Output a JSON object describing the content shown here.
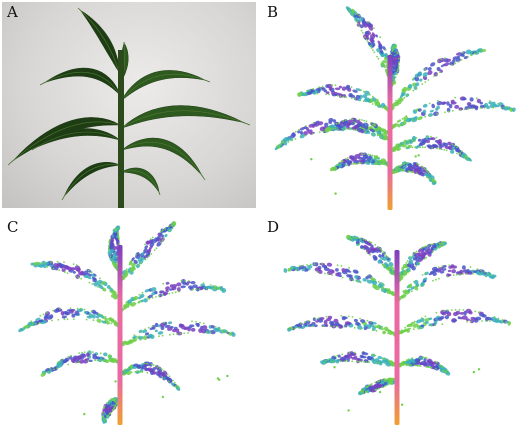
{
  "panels": [
    {
      "id": "a",
      "label": "A",
      "kind": "photo"
    },
    {
      "id": "b",
      "label": "B",
      "kind": "reconstruction",
      "seed": 11
    },
    {
      "id": "c",
      "label": "C",
      "kind": "reconstruction",
      "seed": 23
    },
    {
      "id": "d",
      "label": "D",
      "kind": "reconstruction",
      "seed": 37
    }
  ],
  "colors": {
    "photo_background": "#d9d8d6",
    "leaf_dark": "#1f3d14",
    "leaf_mid": "#2f5a1f",
    "stem_photo": "#2c4a1c",
    "recon_green": "#6fd04a",
    "recon_teal": "#3ab0b8",
    "recon_blue": "#4a55c8",
    "recon_purple": "#7a3fc0",
    "stem_pink": "#e86aa0",
    "stem_orange": "#f0a030"
  }
}
